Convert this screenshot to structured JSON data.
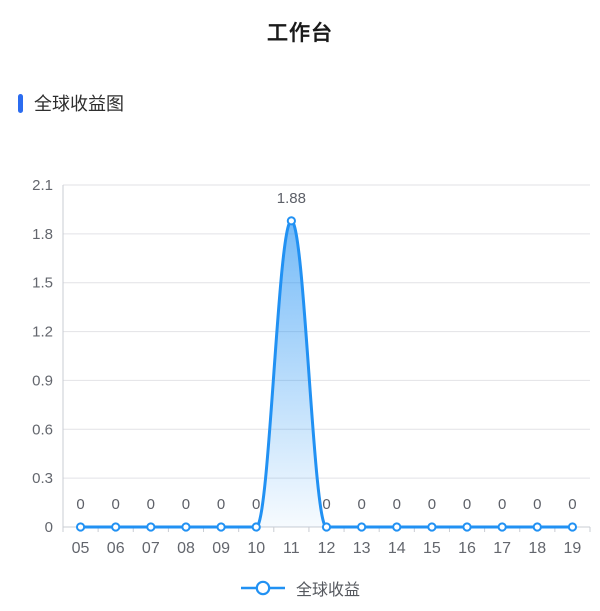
{
  "page": {
    "title": "工作台"
  },
  "section": {
    "title": "全球收益图",
    "accent_color": "#2b6cf0"
  },
  "chart_data": {
    "type": "area",
    "title": "全球收益图",
    "categories": [
      "05",
      "06",
      "07",
      "08",
      "09",
      "10",
      "11",
      "12",
      "13",
      "14",
      "15",
      "16",
      "17",
      "18",
      "19"
    ],
    "series": [
      {
        "name": "全球收益",
        "values": [
          0,
          0,
          0,
          0,
          0,
          0,
          1.88,
          0,
          0,
          0,
          0,
          0,
          0,
          0,
          0
        ]
      }
    ],
    "data_labels": [
      "0",
      "0",
      "0",
      "0",
      "0",
      "0",
      "1.88",
      "0",
      "0",
      "0",
      "0",
      "0",
      "0",
      "0",
      "0"
    ],
    "ylim": [
      0,
      2.1
    ],
    "yticks": [
      "0",
      "0.3",
      "0.6",
      "0.9",
      "1.2",
      "1.5",
      "1.8",
      "2.1"
    ],
    "grid": true,
    "smooth": true,
    "legend_position": "bottom",
    "legend": [
      "全球收益"
    ],
    "colors": {
      "line": "#2191f3",
      "area_top": "rgba(33,145,243,0.62)",
      "area_bottom": "rgba(33,145,243,0.04)",
      "grid_line": "#e2e2e6",
      "axis_line": "#c9ccd3",
      "axis_label": "#63666d",
      "data_label": "#5d6068",
      "legend_text": "#55585e"
    }
  }
}
